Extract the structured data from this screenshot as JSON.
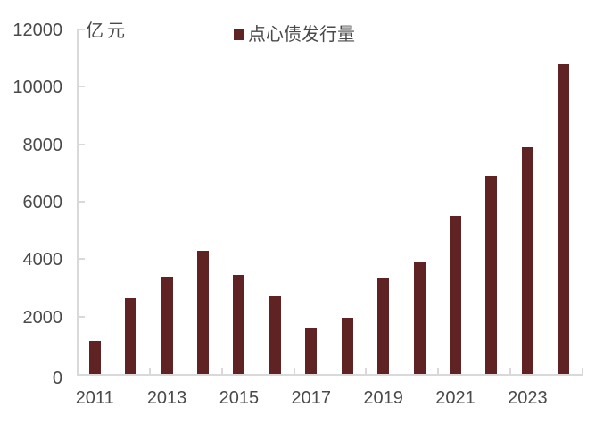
{
  "chart_data": {
    "type": "bar",
    "title": "",
    "unit_label": "亿元",
    "legend": [
      {
        "label": "点心债发行量",
        "color": "#5E2322"
      }
    ],
    "legend_position": "top-center",
    "categories": [
      "2011",
      "2012",
      "2013",
      "2014",
      "2015",
      "2016",
      "2017",
      "2018",
      "2019",
      "2020",
      "2021",
      "2022",
      "2023",
      "2024"
    ],
    "values": [
      1150,
      2650,
      3400,
      4300,
      3450,
      2700,
      1600,
      1950,
      3350,
      3900,
      5500,
      6900,
      7900,
      10800
    ],
    "series_name": "点心债发行量",
    "xlabel": "",
    "ylabel": "亿元",
    "x_tick_labels": [
      "2011",
      "2013",
      "2015",
      "2017",
      "2019",
      "2021",
      "2023"
    ],
    "x_label_interval": 2,
    "ylim": [
      0,
      12000
    ],
    "y_tick_step": 2000,
    "y_tick_labels": [
      "0",
      "2000",
      "4000",
      "6000",
      "8000",
      "10000",
      "12000"
    ],
    "grid": false,
    "colors": {
      "bar": "#5E2322",
      "text": "#4A4A4A",
      "axis": "#D9D9D9"
    }
  }
}
